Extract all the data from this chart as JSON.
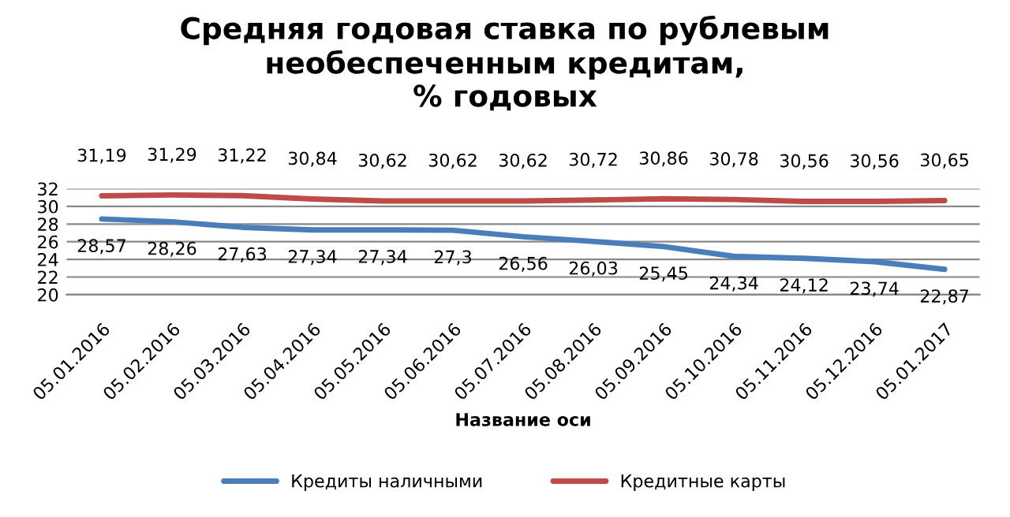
{
  "chart_data": {
    "type": "line",
    "title": "Средняя годовая ставка по рублевым\nнеобеспеченным кредитам,\n% годовых",
    "xlabel": "Название оси",
    "categories": [
      "05.01.2016",
      "05.02.2016",
      "05.03.2016",
      "05.04.2016",
      "05.05.2016",
      "05.06.2016",
      "05.07.2016",
      "05.08.2016",
      "05.09.2016",
      "05.10.2016",
      "05.11.2016",
      "05.12.2016",
      "05.01.2017"
    ],
    "series": [
      {
        "name": "Кредиты наличными",
        "color": "#4a7ebb",
        "values": [
          28.57,
          28.26,
          27.63,
          27.34,
          27.34,
          27.3,
          26.56,
          26.03,
          25.45,
          24.34,
          24.12,
          23.74,
          22.87
        ],
        "value_labels": [
          "28,57",
          "28,26",
          "27,63",
          "27,34",
          "27,34",
          "27,3",
          "26,56",
          "26,03",
          "25,45",
          "24,34",
          "24,12",
          "23,74",
          "22,87"
        ]
      },
      {
        "name": "Кредитные карты",
        "color": "#be4b48",
        "values": [
          31.19,
          31.29,
          31.22,
          30.84,
          30.62,
          30.62,
          30.62,
          30.72,
          30.86,
          30.78,
          30.56,
          30.56,
          30.65
        ],
        "value_labels": [
          "31,19",
          "31,29",
          "31,22",
          "30,84",
          "30,62",
          "30,62",
          "30,62",
          "30,72",
          "30,86",
          "30,78",
          "30,56",
          "30,56",
          "30,65"
        ]
      }
    ],
    "ylim": [
      20,
      32
    ],
    "yticks": [
      20,
      22,
      24,
      26,
      28,
      30,
      32
    ],
    "grid": "y",
    "legend": "bottom",
    "marker": "none",
    "line_style": "solid"
  }
}
